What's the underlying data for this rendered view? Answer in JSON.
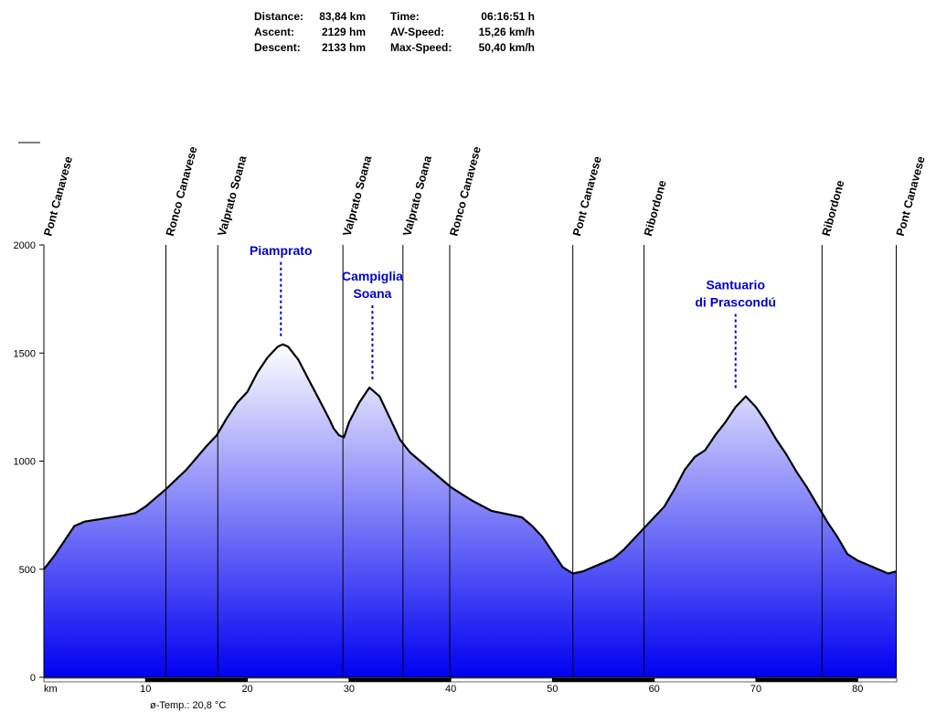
{
  "stats": [
    {
      "label": "Distance:",
      "value": "83,84 km"
    },
    {
      "label": "Ascent:",
      "value": "2129 hm"
    },
    {
      "label": "Descent:",
      "value": "2133 hm"
    },
    {
      "label": "Time:",
      "value": "06:16:51 h"
    },
    {
      "label": "AV-Speed:",
      "value": "15,26 km/h"
    },
    {
      "label": "Max-Speed:",
      "value": "50,40 km/h"
    }
  ],
  "temperature": "ø-Temp.: 20,8 °C",
  "colors": {
    "fill_top": "#ffffff",
    "fill_bottom": "#0000f2",
    "label_blue": "#0000cc",
    "line": "#000000"
  },
  "chart_data": {
    "type": "area",
    "title": "",
    "xlabel": "km",
    "ylabel": "",
    "xlim": [
      0,
      83.84
    ],
    "ylim": [
      0,
      2000
    ],
    "x_ticks": [
      10,
      20,
      30,
      40,
      50,
      60,
      70,
      80
    ],
    "y_ticks": [
      0,
      500,
      1000,
      1500,
      2000
    ],
    "grid": false,
    "series": [
      {
        "x": [
          0,
          1,
          2,
          3,
          4,
          6,
          8,
          9,
          10,
          12,
          14,
          16,
          17,
          18,
          19,
          20,
          21,
          22,
          23,
          23.5,
          24,
          25,
          26,
          27,
          28,
          28.5,
          29,
          29.5,
          30,
          31,
          32,
          33,
          34,
          35,
          36,
          38,
          40,
          42,
          44,
          46,
          47,
          48,
          49,
          50,
          51,
          52,
          53,
          54,
          55,
          56,
          57,
          59,
          61,
          62,
          63,
          64,
          65,
          66,
          67,
          68,
          69,
          70,
          71,
          72,
          73,
          74,
          75,
          76,
          77,
          78,
          79,
          80,
          81,
          82,
          83,
          83.84
        ],
        "y": [
          500,
          560,
          630,
          700,
          720,
          735,
          750,
          760,
          790,
          870,
          960,
          1070,
          1120,
          1200,
          1270,
          1320,
          1410,
          1480,
          1530,
          1540,
          1530,
          1470,
          1380,
          1290,
          1200,
          1150,
          1120,
          1110,
          1180,
          1270,
          1340,
          1300,
          1200,
          1100,
          1040,
          960,
          880,
          820,
          770,
          750,
          740,
          700,
          650,
          580,
          510,
          480,
          490,
          510,
          530,
          550,
          590,
          690,
          790,
          870,
          960,
          1020,
          1050,
          1120,
          1180,
          1250,
          1300,
          1250,
          1180,
          1100,
          1030,
          950,
          880,
          800,
          720,
          650,
          570,
          540,
          520,
          500,
          480,
          490
        ]
      }
    ],
    "highlights": [
      {
        "name": "Piamprato",
        "x": 23.3,
        "elevation": 1540
      },
      {
        "name": "Campiglia Soana",
        "x": 32.3,
        "elevation": 1340
      },
      {
        "name": "Santuario di Prascondú",
        "x": 68.0,
        "elevation": 1300
      }
    ],
    "waypoints": [
      {
        "name": "Pont Canavese",
        "x": 0
      },
      {
        "name": "Ronco Canavese",
        "x": 12.0
      },
      {
        "name": "Valprato Soana",
        "x": 17.1
      },
      {
        "name": "Valprato Soana",
        "x": 29.4
      },
      {
        "name": "Valprato Soana",
        "x": 35.3
      },
      {
        "name": "Ronco Canavese",
        "x": 39.9
      },
      {
        "name": "Pont Canavese",
        "x": 52.0
      },
      {
        "name": "Ribordone",
        "x": 59.0
      },
      {
        "name": "Ribordone",
        "x": 76.5
      },
      {
        "name": "Pont Canavese",
        "x": 83.8
      }
    ]
  }
}
